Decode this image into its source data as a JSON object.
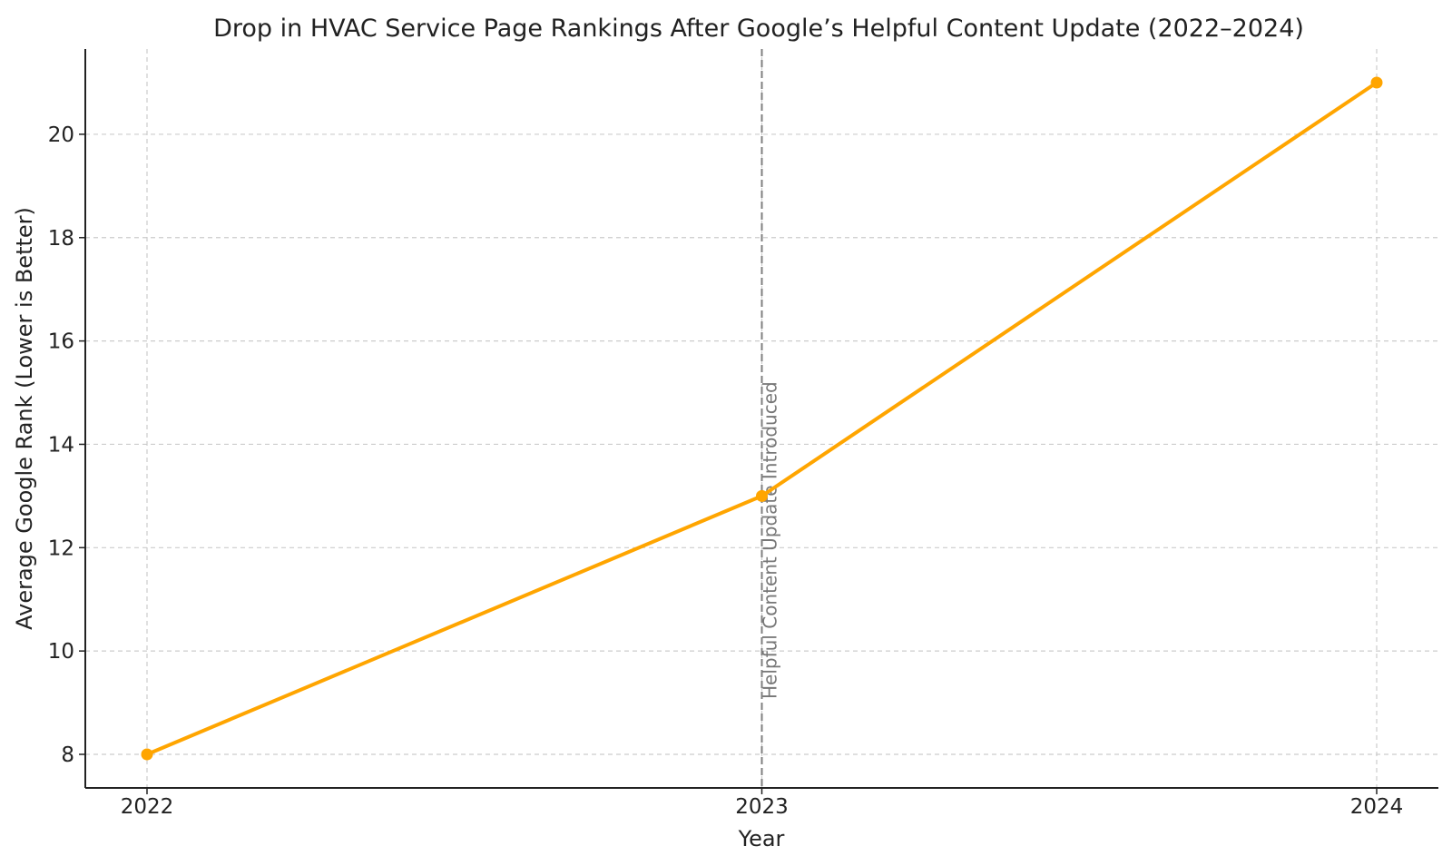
{
  "chart_data": {
    "type": "line",
    "title": "Drop in HVAC Service Page Rankings After Google’s Helpful Content Update (2022–2024)",
    "xlabel": "Year",
    "ylabel": "Average Google Rank (Lower is Better)",
    "categories": [
      "2022",
      "2023",
      "2024"
    ],
    "series": [
      {
        "values": [
          8,
          13,
          21
        ],
        "color": "#FFA500",
        "marker": "circle"
      }
    ],
    "yticks": [
      8,
      10,
      12,
      14,
      16,
      18,
      20
    ],
    "ylim": [
      7.35,
      21.65
    ],
    "grid": true,
    "annotation": {
      "x": "2023",
      "text": "Helpful Content Update Introduced",
      "line_style": "dashed",
      "color": "#808080"
    }
  }
}
